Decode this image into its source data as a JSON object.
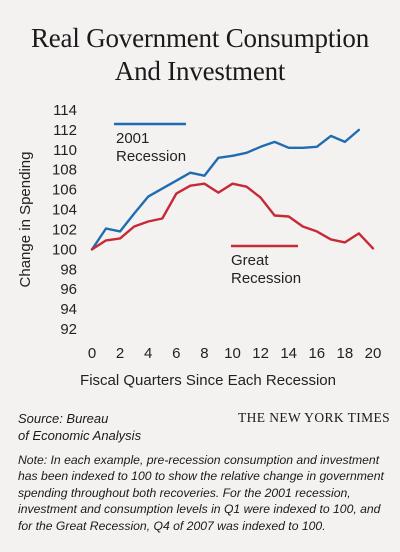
{
  "title_line1": "Real Government Consumption",
  "title_line2": "And Investment",
  "source_line1": "Source: Bureau",
  "source_line2": "of Economic Analysis",
  "brand": "THE NEW YORK TIMES",
  "note": "Note: In each example, pre-recession consumption and investment has been indexed to 100 to show the relative change in government spending throughout both recoveries. For the 2001 recession, investment and consumption levels in Q1 were indexed to 100, and for the Great Recession, Q4 of 2007 was indexed to 100.",
  "chart_data": {
    "type": "line",
    "xlabel": "Fiscal Quarters Since Each Recession",
    "ylabel": "Change in Spending",
    "xlim": [
      0,
      20
    ],
    "ylim": [
      92,
      114
    ],
    "xticks": [
      0,
      2,
      4,
      6,
      8,
      10,
      12,
      14,
      16,
      18,
      20
    ],
    "yticks": [
      92,
      94,
      96,
      98,
      100,
      102,
      104,
      106,
      108,
      110,
      112,
      114
    ],
    "grid": false,
    "series": [
      {
        "name": "2001 Recession",
        "legend_lines": [
          "2001",
          "Recession"
        ],
        "color": "#1f6cb0",
        "x": [
          0,
          1,
          2,
          3,
          4,
          5,
          6,
          7,
          8,
          9,
          10,
          11,
          12,
          13,
          14,
          15,
          16,
          17,
          18,
          19,
          20
        ],
        "values": [
          100.0,
          102.1,
          101.8,
          103.6,
          105.3,
          106.1,
          106.9,
          107.7,
          107.4,
          109.2,
          109.4,
          109.7,
          110.3,
          110.8,
          110.2,
          110.2,
          110.3,
          111.4,
          110.8,
          112.0,
          null
        ]
      },
      {
        "name": "Great Recession",
        "legend_lines": [
          "Great",
          "Recession"
        ],
        "color": "#c62a37",
        "x": [
          0,
          1,
          2,
          3,
          4,
          5,
          6,
          7,
          8,
          9,
          10,
          11,
          12,
          13,
          14,
          15,
          16,
          17,
          18,
          19,
          20
        ],
        "values": [
          100.0,
          100.9,
          101.1,
          102.3,
          102.8,
          103.1,
          105.6,
          106.4,
          106.6,
          105.7,
          106.6,
          106.3,
          105.2,
          103.4,
          103.3,
          102.3,
          101.8,
          101.0,
          100.7,
          101.6,
          100.1
        ]
      }
    ]
  }
}
